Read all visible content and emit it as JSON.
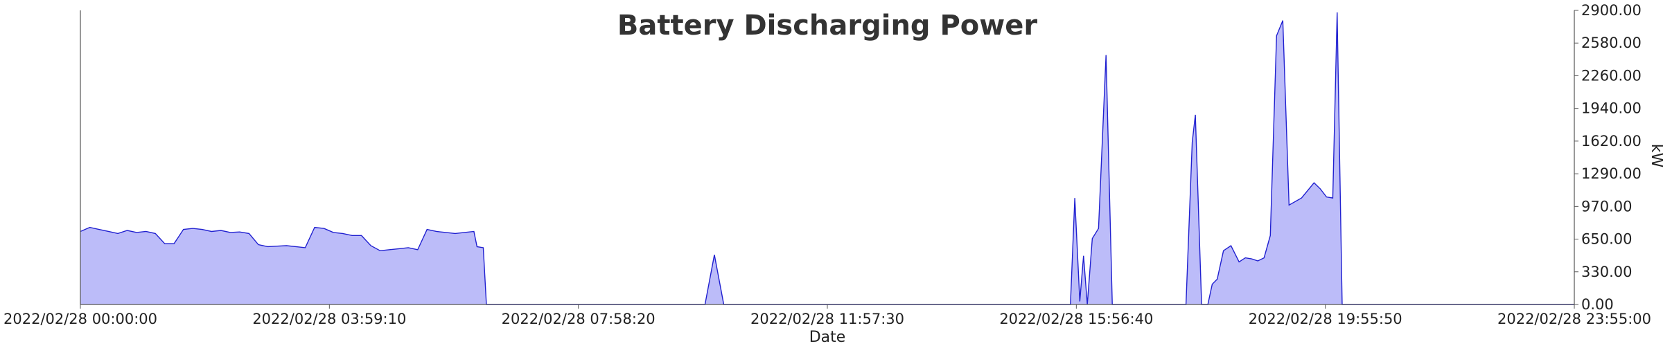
{
  "chart_data": {
    "type": "area",
    "title": "Battery Discharging Power",
    "xlabel": "Date",
    "ylabel": "kW",
    "x_tick_labels": [
      "2022/02/28 00:00:00",
      "2022/02/28 03:59:10",
      "2022/02/28 07:58:20",
      "2022/02/28 11:57:30",
      "2022/02/28 15:56:40",
      "2022/02/28 19:55:50",
      "2022/02/28 23:55:00"
    ],
    "y_tick_labels": [
      "0.00",
      "330.00",
      "650.00",
      "970.00",
      "1290.00",
      "1620.00",
      "1940.00",
      "2260.00",
      "2580.00",
      "2900.00"
    ],
    "xlim_hours": [
      0,
      23.9167
    ],
    "ylim": [
      0,
      2900
    ],
    "grid": false,
    "legend": "none",
    "colors": {
      "fill": "#bcbcf9",
      "line": "#2020d0",
      "axis": "#555555"
    },
    "series": [
      {
        "x_hours": [
          0,
          0.15,
          0.3,
          0.45,
          0.6,
          0.75,
          0.9,
          1.05,
          1.2,
          1.35,
          1.5,
          1.65,
          1.8,
          1.95,
          2.1,
          2.25,
          2.4,
          2.55,
          2.7,
          2.85,
          3.0,
          3.15,
          3.3,
          3.45,
          3.6,
          3.75,
          3.9,
          4.05,
          4.2,
          4.35,
          4.5,
          4.65,
          4.8,
          4.95,
          5.1,
          5.25,
          5.4,
          5.55,
          5.7,
          5.85,
          6.0,
          6.15,
          6.3,
          6.35,
          6.45,
          6.5,
          10.0,
          10.15,
          10.3,
          10.45,
          15.85,
          15.92,
          16.0,
          16.06,
          16.12,
          16.2,
          16.3,
          16.42,
          16.52,
          16.68,
          16.8,
          17.7,
          17.8,
          17.85,
          17.95,
          18.05,
          18.12,
          18.2,
          18.3,
          18.42,
          18.55,
          18.65,
          18.75,
          18.85,
          18.95,
          19.05,
          19.15,
          19.25,
          19.35,
          19.55,
          19.75,
          19.85,
          19.95,
          20.05,
          20.12,
          20.2,
          23.9167
        ],
        "y": [
          720,
          760,
          740,
          720,
          700,
          730,
          710,
          720,
          700,
          600,
          600,
          740,
          750,
          740,
          720,
          730,
          710,
          715,
          700,
          590,
          570,
          575,
          580,
          570,
          560,
          760,
          750,
          710,
          700,
          680,
          680,
          580,
          530,
          540,
          550,
          560,
          540,
          740,
          720,
          710,
          700,
          710,
          720,
          570,
          560,
          0,
          0,
          490,
          0,
          0,
          0,
          1050,
          30,
          480,
          0,
          650,
          750,
          2460,
          0,
          0,
          0,
          0,
          1600,
          1870,
          0,
          0,
          200,
          250,
          530,
          580,
          420,
          460,
          450,
          430,
          460,
          680,
          2650,
          2800,
          980,
          1050,
          1200,
          1140,
          1060,
          1050,
          2880,
          0,
          0
        ]
      }
    ]
  }
}
